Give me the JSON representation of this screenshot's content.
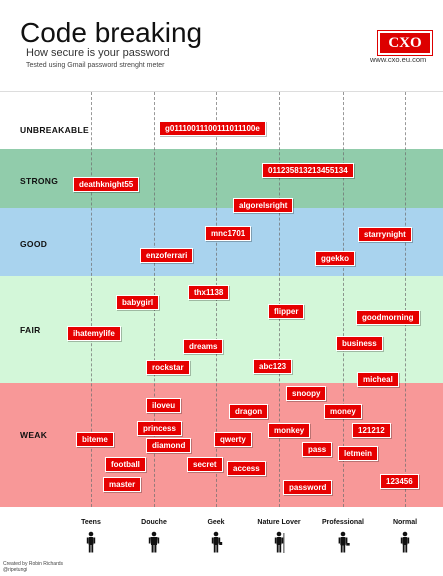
{
  "header": {
    "title": "Code breaking",
    "subtitle": "How secure is your password",
    "note": "Tested using Gmail password strenght meter",
    "logo": "CXO",
    "site": "www.cxo.eu.com"
  },
  "bands": [
    {
      "label": "UNBREAKABLE",
      "color": "#ffffff"
    },
    {
      "label": "STRONG",
      "color": "#91ccab"
    },
    {
      "label": "GOOD",
      "color": "#a9d3ee"
    },
    {
      "label": "FAIR",
      "color": "#d3f7d9"
    },
    {
      "label": "WEAK",
      "color": "#f89898"
    }
  ],
  "categories": [
    "Teens",
    "Douche",
    "Geek",
    "Nature Lover",
    "Professional",
    "Normal"
  ],
  "passwords": [
    "g01110011100111011100e",
    "011235813213455134",
    "deathknight55",
    "algorelsright",
    "mnc1701",
    "starrynight",
    "enzoferrari",
    "ggekko",
    "thx1138",
    "babygirl",
    "flipper",
    "goodmorning",
    "ihatemylife",
    "dreams",
    "business",
    "rockstar",
    "abc123",
    "micheal",
    "snoopy",
    "iloveu",
    "dragon",
    "money",
    "princess",
    "monkey",
    "121212",
    "biteme",
    "qwerty",
    "diamond",
    "pass",
    "letmein",
    "football",
    "secret",
    "access",
    "123456",
    "master",
    "password"
  ],
  "credit": {
    "line1": "Created by Robin Richards",
    "line2": "@ripetungi"
  }
}
